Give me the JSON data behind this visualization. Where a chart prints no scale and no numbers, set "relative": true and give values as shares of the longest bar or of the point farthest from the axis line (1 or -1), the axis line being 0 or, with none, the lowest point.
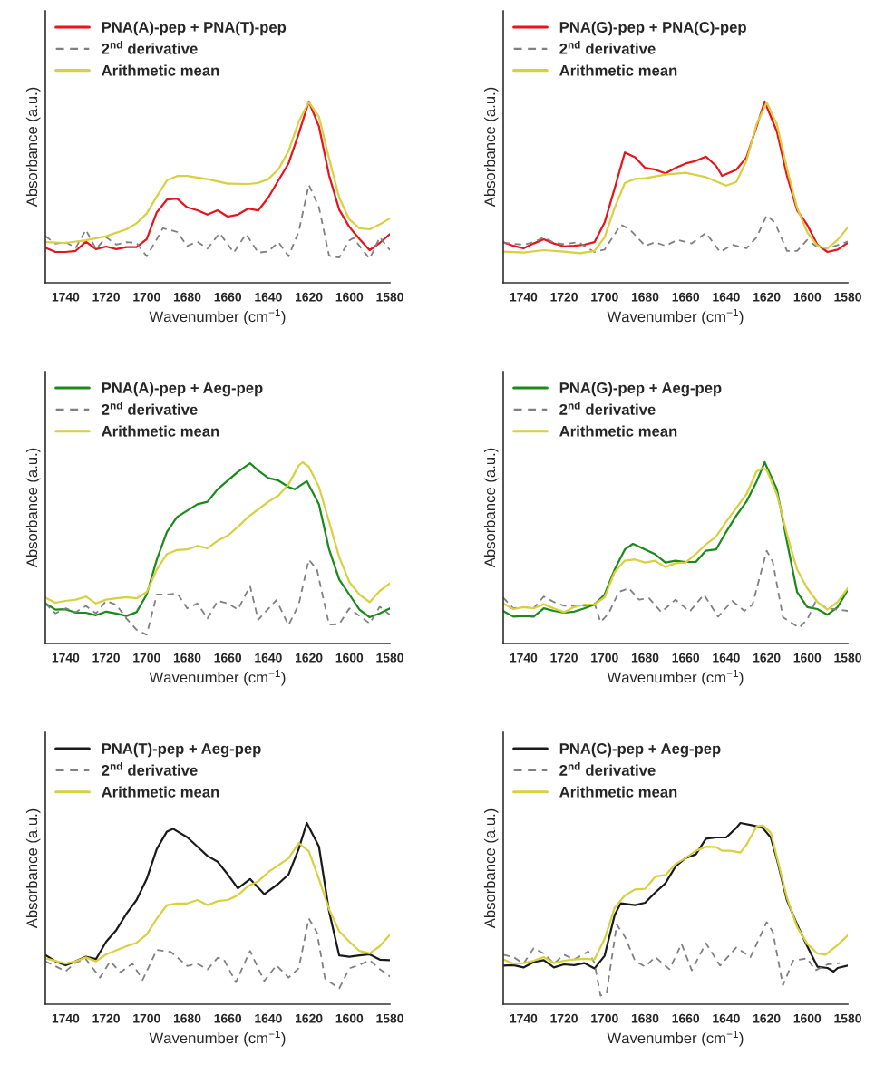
{
  "chart_data": [
    {
      "type": "line",
      "relative": true,
      "xlabel": "Wavenumber (cm$^{−1}$)",
      "ylabel": "Absorbance (a.u.)",
      "xlim": [
        1750,
        1580
      ],
      "xticks": [
        1740,
        1720,
        1700,
        1680,
        1660,
        1640,
        1620,
        1600,
        1580
      ],
      "legend": "top left",
      "series": [
        {
          "name": "PNA(A)-pep + PNA(T)-pep",
          "color": "#e8141c",
          "line_style": "solid",
          "x": [
            1750,
            1745,
            1740,
            1735,
            1730,
            1725,
            1720,
            1715,
            1710,
            1705,
            1700,
            1695,
            1690,
            1685,
            1680,
            1675,
            1670,
            1665,
            1660,
            1655,
            1650,
            1645,
            1640,
            1635,
            1630,
            1625,
            1620,
            1615,
            1610,
            1605,
            1600,
            1595,
            1590,
            1585,
            1580
          ],
          "values": [
            0.193,
            0.17,
            0.17,
            0.176,
            0.227,
            0.186,
            0.2,
            0.186,
            0.197,
            0.197,
            0.241,
            0.389,
            0.459,
            0.464,
            0.416,
            0.4,
            0.376,
            0.4,
            0.365,
            0.376,
            0.409,
            0.399,
            0.47,
            0.565,
            0.659,
            0.822,
            1.0,
            0.862,
            0.592,
            0.403,
            0.308,
            0.241,
            0.18,
            0.22,
            0.268
          ]
        },
        {
          "name": "2$^{nd}$ derivative",
          "color": "#808080",
          "line_style": "dashed",
          "x": [
            1750,
            1745,
            1740,
            1735,
            1730,
            1725,
            1720,
            1715,
            1710,
            1705,
            1700,
            1695,
            1692,
            1685,
            1680,
            1675,
            1670,
            1664,
            1657,
            1651,
            1645,
            1640,
            1635,
            1630,
            1625,
            1620,
            1615,
            1610,
            1605,
            1600,
            1598,
            1590,
            1585,
            1580
          ],
          "values": [
            0.257,
            0.216,
            0.224,
            0.193,
            0.292,
            0.186,
            0.251,
            0.211,
            0.224,
            0.22,
            0.146,
            0.241,
            0.301,
            0.281,
            0.203,
            0.227,
            0.189,
            0.274,
            0.166,
            0.27,
            0.166,
            0.173,
            0.224,
            0.146,
            0.281,
            0.541,
            0.416,
            0.149,
            0.139,
            0.234,
            0.247,
            0.132,
            0.251,
            0.18
          ]
        },
        {
          "name": "Arithmetic mean",
          "color": "#d8d040",
          "line_style": "solid",
          "x": [
            1750,
            1740,
            1730,
            1720,
            1710,
            1705,
            1700,
            1695,
            1690,
            1685,
            1680,
            1670,
            1660,
            1650,
            1645,
            1640,
            1635,
            1630,
            1625,
            1620,
            1615,
            1610,
            1605,
            1600,
            1595,
            1590,
            1585,
            1580
          ],
          "values": [
            0.224,
            0.22,
            0.234,
            0.257,
            0.295,
            0.328,
            0.382,
            0.477,
            0.565,
            0.589,
            0.589,
            0.572,
            0.547,
            0.545,
            0.551,
            0.572,
            0.626,
            0.727,
            0.889,
            0.997,
            0.916,
            0.686,
            0.47,
            0.349,
            0.301,
            0.295,
            0.322,
            0.355
          ]
        }
      ]
    },
    {
      "type": "line",
      "relative": true,
      "xlabel": "Wavenumber (cm$^{−1}$)",
      "ylabel": "Absorbance (a.u.)",
      "xlim": [
        1750,
        1580
      ],
      "xticks": [
        1740,
        1720,
        1700,
        1680,
        1660,
        1640,
        1620,
        1600,
        1580
      ],
      "legend": "top left",
      "series": [
        {
          "name": "PNA(G)-pep + PNA(C)-pep",
          "color": "#e8141c",
          "line_style": "solid",
          "x": [
            1750,
            1745,
            1740,
            1735,
            1730,
            1725,
            1720,
            1715,
            1710,
            1705,
            1700,
            1695,
            1690,
            1685,
            1680,
            1675,
            1670,
            1665,
            1660,
            1655,
            1650,
            1645,
            1642,
            1635,
            1630,
            1625,
            1621,
            1615,
            1610,
            1605,
            1600,
            1595,
            1590,
            1585,
            1580
          ],
          "values": [
            0.224,
            0.204,
            0.19,
            0.217,
            0.24,
            0.217,
            0.201,
            0.204,
            0.21,
            0.224,
            0.332,
            0.522,
            0.719,
            0.692,
            0.634,
            0.624,
            0.604,
            0.634,
            0.658,
            0.672,
            0.696,
            0.645,
            0.59,
            0.624,
            0.692,
            0.862,
            1.0,
            0.835,
            0.59,
            0.4,
            0.319,
            0.21,
            0.17,
            0.183,
            0.221
          ]
        },
        {
          "name": "2$^{nd}$ derivative",
          "color": "#808080",
          "line_style": "dashed",
          "x": [
            1750,
            1740,
            1735,
            1730,
            1725,
            1720,
            1713,
            1705,
            1700,
            1692,
            1688,
            1680,
            1675,
            1670,
            1664,
            1657,
            1650,
            1643,
            1637,
            1630,
            1625,
            1620,
            1616,
            1610,
            1605,
            1600,
            1595,
            1590,
            1580
          ],
          "values": [
            0.221,
            0.21,
            0.224,
            0.251,
            0.221,
            0.213,
            0.224,
            0.17,
            0.183,
            0.319,
            0.299,
            0.204,
            0.224,
            0.204,
            0.237,
            0.217,
            0.275,
            0.17,
            0.21,
            0.19,
            0.251,
            0.373,
            0.332,
            0.176,
            0.176,
            0.237,
            0.197,
            0.19,
            0.227
          ]
        },
        {
          "name": "Arithmetic mean",
          "color": "#d8d040",
          "line_style": "solid",
          "x": [
            1750,
            1740,
            1730,
            1720,
            1712,
            1705,
            1700,
            1695,
            1690,
            1685,
            1680,
            1670,
            1660,
            1650,
            1640,
            1635,
            1630,
            1625,
            1620,
            1615,
            1610,
            1605,
            1600,
            1595,
            1590,
            1585,
            1580
          ],
          "values": [
            0.172,
            0.167,
            0.18,
            0.172,
            0.163,
            0.176,
            0.251,
            0.414,
            0.55,
            0.573,
            0.577,
            0.597,
            0.607,
            0.583,
            0.536,
            0.556,
            0.672,
            0.875,
            0.995,
            0.875,
            0.631,
            0.414,
            0.278,
            0.204,
            0.19,
            0.237,
            0.305
          ]
        }
      ]
    },
    {
      "type": "line",
      "relative": true,
      "xlabel": "Wavenumber (cm$^{−1}$)",
      "ylabel": "Absorbance (a.u.)",
      "xlim": [
        1750,
        1580
      ],
      "xticks": [
        1740,
        1720,
        1700,
        1680,
        1660,
        1640,
        1620,
        1600,
        1580
      ],
      "legend": "top left",
      "series": [
        {
          "name": "PNA(A)-pep + Aeg-pep",
          "color": "#1a8a1a",
          "line_style": "solid",
          "x": [
            1750,
            1745,
            1740,
            1735,
            1730,
            1725,
            1720,
            1715,
            1710,
            1705,
            1700,
            1695,
            1690,
            1685,
            1680,
            1675,
            1670,
            1665,
            1660,
            1655,
            1649,
            1645,
            1640,
            1635,
            1630,
            1627,
            1621,
            1615,
            1610,
            1605,
            1600,
            1595,
            1590,
            1585,
            1580
          ],
          "values": [
            0.221,
            0.187,
            0.189,
            0.17,
            0.17,
            0.156,
            0.176,
            0.166,
            0.152,
            0.173,
            0.27,
            0.463,
            0.616,
            0.698,
            0.733,
            0.768,
            0.782,
            0.851,
            0.899,
            0.947,
            0.994,
            0.954,
            0.913,
            0.899,
            0.864,
            0.851,
            0.896,
            0.768,
            0.519,
            0.353,
            0.27,
            0.187,
            0.145,
            0.166,
            0.194
          ]
        },
        {
          "name": "2$^{nd}$ derivative",
          "color": "#808080",
          "line_style": "dashed",
          "x": [
            1750,
            1745,
            1740,
            1735,
            1730,
            1725,
            1720,
            1715,
            1710,
            1705,
            1700,
            1695,
            1690,
            1685,
            1680,
            1675,
            1670,
            1665,
            1660,
            1655,
            1649,
            1645,
            1636,
            1630,
            1625,
            1620,
            1616,
            1610,
            1605,
            1600,
            1595,
            1590,
            1585,
            1580
          ],
          "values": [
            0.221,
            0.166,
            0.194,
            0.173,
            0.207,
            0.166,
            0.235,
            0.214,
            0.138,
            0.076,
            0.048,
            0.27,
            0.27,
            0.277,
            0.194,
            0.221,
            0.138,
            0.235,
            0.221,
            0.187,
            0.318,
            0.131,
            0.239,
            0.101,
            0.214,
            0.463,
            0.408,
            0.104,
            0.107,
            0.194,
            0.152,
            0.111,
            0.203,
            0.159
          ]
        },
        {
          "name": "Arithmetic mean",
          "color": "#d8d040",
          "line_style": "solid",
          "x": [
            1750,
            1745,
            1740,
            1735,
            1730,
            1725,
            1720,
            1715,
            1710,
            1705,
            1700,
            1695,
            1690,
            1685,
            1680,
            1675,
            1670,
            1665,
            1660,
            1655,
            1650,
            1645,
            1640,
            1635,
            1630,
            1625,
            1623,
            1620,
            1615,
            1610,
            1605,
            1600,
            1595,
            1590,
            1585,
            1580
          ],
          "values": [
            0.253,
            0.225,
            0.235,
            0.242,
            0.259,
            0.221,
            0.242,
            0.249,
            0.256,
            0.249,
            0.284,
            0.408,
            0.494,
            0.516,
            0.519,
            0.539,
            0.526,
            0.567,
            0.595,
            0.643,
            0.698,
            0.74,
            0.782,
            0.816,
            0.878,
            0.982,
            1.0,
            0.975,
            0.864,
            0.671,
            0.477,
            0.339,
            0.27,
            0.228,
            0.29,
            0.332
          ]
        }
      ]
    },
    {
      "type": "line",
      "relative": true,
      "xlabel": "Wavenumber (cm$^{−1}$)",
      "ylabel": "Absorbance (a.u.)",
      "xlim": [
        1750,
        1580
      ],
      "xticks": [
        1740,
        1720,
        1700,
        1680,
        1660,
        1640,
        1620,
        1600,
        1580
      ],
      "legend": "top left",
      "series": [
        {
          "name": "PNA(G)-pep + Aeg-pep",
          "color": "#1a8a1a",
          "line_style": "solid",
          "x": [
            1750,
            1745,
            1740,
            1735,
            1730,
            1725,
            1720,
            1715,
            1710,
            1705,
            1700,
            1695,
            1690,
            1686,
            1680,
            1675,
            1670,
            1665,
            1660,
            1655,
            1650,
            1645,
            1640,
            1635,
            1630,
            1625,
            1621,
            1615,
            1610,
            1605,
            1600,
            1595,
            1590,
            1585,
            1580
          ],
          "values": [
            0.179,
            0.148,
            0.152,
            0.148,
            0.194,
            0.18,
            0.17,
            0.176,
            0.194,
            0.215,
            0.27,
            0.409,
            0.519,
            0.55,
            0.519,
            0.492,
            0.447,
            0.457,
            0.45,
            0.45,
            0.512,
            0.519,
            0.616,
            0.706,
            0.783,
            0.893,
            1.0,
            0.852,
            0.561,
            0.284,
            0.201,
            0.19,
            0.159,
            0.201,
            0.295
          ]
        },
        {
          "name": "2$^{nd}$ derivative",
          "color": "#808080",
          "line_style": "dashed",
          "x": [
            1750,
            1745,
            1740,
            1735,
            1730,
            1725,
            1720,
            1710,
            1705,
            1702,
            1698,
            1693,
            1688,
            1683,
            1678,
            1672,
            1665,
            1658,
            1651,
            1644,
            1637,
            1631,
            1627,
            1620,
            1617,
            1612,
            1604,
            1600,
            1596,
            1590,
            1580
          ],
          "values": [
            0.253,
            0.194,
            0.201,
            0.194,
            0.259,
            0.229,
            0.208,
            0.208,
            0.222,
            0.118,
            0.166,
            0.284,
            0.305,
            0.242,
            0.249,
            0.173,
            0.242,
            0.176,
            0.27,
            0.148,
            0.235,
            0.18,
            0.215,
            0.512,
            0.45,
            0.145,
            0.087,
            0.132,
            0.229,
            0.194,
            0.18
          ]
        },
        {
          "name": "Arithmetic mean",
          "color": "#d8d040",
          "line_style": "solid",
          "x": [
            1750,
            1745,
            1740,
            1735,
            1730,
            1725,
            1720,
            1715,
            1710,
            1705,
            1700,
            1695,
            1690,
            1685,
            1680,
            1675,
            1670,
            1665,
            1660,
            1655,
            1650,
            1645,
            1640,
            1635,
            1630,
            1625,
            1622,
            1620,
            1615,
            1610,
            1605,
            1600,
            1595,
            1590,
            1585,
            1580
          ],
          "values": [
            0.222,
            0.19,
            0.201,
            0.194,
            0.217,
            0.194,
            0.173,
            0.201,
            0.215,
            0.215,
            0.256,
            0.395,
            0.457,
            0.464,
            0.447,
            0.457,
            0.422,
            0.443,
            0.447,
            0.494,
            0.547,
            0.589,
            0.672,
            0.748,
            0.824,
            0.949,
            0.967,
            0.956,
            0.824,
            0.602,
            0.409,
            0.305,
            0.229,
            0.187,
            0.229,
            0.305
          ]
        }
      ]
    },
    {
      "type": "line",
      "relative": true,
      "xlabel": "Wavenumber (cm$^{−1}$)",
      "ylabel": "Absorbance (a.u.)",
      "xlim": [
        1750,
        1580
      ],
      "xticks": [
        1740,
        1720,
        1700,
        1680,
        1660,
        1640,
        1620,
        1600,
        1580
      ],
      "legend": "top left",
      "series": [
        {
          "name": "PNA(T)-pep + Aeg-pep",
          "color": "#1a1a1a",
          "line_style": "solid",
          "x": [
            1750,
            1745,
            1740,
            1735,
            1730,
            1725,
            1720,
            1715,
            1710,
            1705,
            1700,
            1695,
            1690,
            1687,
            1680,
            1675,
            1670,
            1665,
            1660,
            1655,
            1649,
            1642,
            1635,
            1630,
            1625,
            1621,
            1615,
            1610,
            1605,
            1600,
            1595,
            1590,
            1585,
            1580
          ],
          "values": [
            0.271,
            0.237,
            0.215,
            0.237,
            0.262,
            0.249,
            0.345,
            0.409,
            0.499,
            0.575,
            0.691,
            0.857,
            0.953,
            0.968,
            0.921,
            0.87,
            0.818,
            0.786,
            0.716,
            0.639,
            0.691,
            0.607,
            0.665,
            0.716,
            0.857,
            1.0,
            0.87,
            0.512,
            0.269,
            0.262,
            0.269,
            0.275,
            0.246,
            0.243
          ]
        },
        {
          "name": "2$^{nd}$ derivative",
          "color": "#808080",
          "line_style": "dashed",
          "x": [
            1750,
            1740,
            1735,
            1730,
            1723,
            1718,
            1713,
            1707,
            1702,
            1695,
            1688,
            1680,
            1675,
            1670,
            1665,
            1662,
            1656,
            1649,
            1642,
            1636,
            1630,
            1625,
            1620,
            1616,
            1612,
            1605,
            1600,
            1595,
            1590,
            1585,
            1580
          ],
          "values": [
            0.237,
            0.182,
            0.23,
            0.249,
            0.147,
            0.237,
            0.176,
            0.224,
            0.134,
            0.3,
            0.288,
            0.211,
            0.224,
            0.192,
            0.256,
            0.249,
            0.121,
            0.294,
            0.128,
            0.215,
            0.147,
            0.198,
            0.473,
            0.396,
            0.141,
            0.087,
            0.198,
            0.217,
            0.243,
            0.194,
            0.153
          ]
        },
        {
          "name": "Arithmetic mean",
          "color": "#d8d040",
          "line_style": "solid",
          "x": [
            1750,
            1740,
            1735,
            1730,
            1725,
            1720,
            1710,
            1705,
            1700,
            1695,
            1690,
            1685,
            1680,
            1675,
            1670,
            1665,
            1660,
            1655,
            1650,
            1645,
            1640,
            1635,
            1630,
            1625,
            1620,
            1615,
            1610,
            1605,
            1600,
            1595,
            1590,
            1585,
            1580
          ],
          "values": [
            0.253,
            0.224,
            0.237,
            0.258,
            0.237,
            0.275,
            0.32,
            0.339,
            0.384,
            0.473,
            0.547,
            0.556,
            0.556,
            0.575,
            0.547,
            0.569,
            0.575,
            0.601,
            0.652,
            0.678,
            0.729,
            0.767,
            0.806,
            0.889,
            0.844,
            0.691,
            0.524,
            0.403,
            0.345,
            0.294,
            0.281,
            0.32,
            0.384
          ]
        }
      ]
    },
    {
      "type": "line",
      "relative": true,
      "xlabel": "Wavenumber (cm$^{−1}$)",
      "ylabel": "Absorbance (a.u.)",
      "xlim": [
        1750,
        1580
      ],
      "xticks": [
        1740,
        1720,
        1700,
        1680,
        1660,
        1640,
        1620,
        1600,
        1580
      ],
      "legend": "top left",
      "series": [
        {
          "name": "PNA(C)-pep + Aeg-pep",
          "color": "#1a1a1a",
          "line_style": "solid",
          "x": [
            1750,
            1745,
            1740,
            1735,
            1730,
            1725,
            1720,
            1715,
            1710,
            1705,
            1700,
            1695,
            1692,
            1685,
            1680,
            1675,
            1670,
            1665,
            1660,
            1655,
            1650,
            1645,
            1640,
            1635,
            1633,
            1627,
            1622,
            1618,
            1615,
            1610,
            1605,
            1600,
            1595,
            1590,
            1587,
            1585,
            1580
          ],
          "values": [
            0.213,
            0.216,
            0.203,
            0.233,
            0.243,
            0.203,
            0.22,
            0.216,
            0.227,
            0.197,
            0.267,
            0.493,
            0.557,
            0.547,
            0.56,
            0.616,
            0.667,
            0.76,
            0.807,
            0.827,
            0.913,
            0.92,
            0.92,
            0.973,
            1.0,
            0.987,
            0.973,
            0.92,
            0.8,
            0.573,
            0.44,
            0.32,
            0.207,
            0.2,
            0.18,
            0.2,
            0.213
          ]
        },
        {
          "name": "2$^{nd}$ derivative",
          "color": "#808080",
          "line_style": "dashed",
          "x": [
            1750,
            1745,
            1740,
            1735,
            1730,
            1725,
            1720,
            1715,
            1708,
            1705,
            1702,
            1699,
            1694,
            1690,
            1685,
            1680,
            1675,
            1668,
            1662,
            1657,
            1650,
            1643,
            1635,
            1628,
            1620,
            1617,
            1612,
            1607,
            1600,
            1596,
            1590,
            1584
          ],
          "values": [
            0.273,
            0.26,
            0.224,
            0.309,
            0.28,
            0.224,
            0.273,
            0.247,
            0.291,
            0.227,
            0.047,
            0.06,
            0.44,
            0.373,
            0.24,
            0.207,
            0.26,
            0.193,
            0.333,
            0.187,
            0.336,
            0.213,
            0.313,
            0.26,
            0.453,
            0.4,
            0.104,
            0.24,
            0.253,
            0.187,
            0.22,
            0.227
          ]
        },
        {
          "name": "Arithmetic mean",
          "color": "#d8d040",
          "line_style": "solid",
          "x": [
            1750,
            1745,
            1740,
            1735,
            1730,
            1725,
            1720,
            1715,
            1710,
            1705,
            1700,
            1695,
            1690,
            1685,
            1680,
            1675,
            1670,
            1665,
            1660,
            1655,
            1650,
            1645,
            1642,
            1638,
            1633,
            1630,
            1625,
            1622,
            1618,
            1615,
            1610,
            1605,
            1600,
            1595,
            1591,
            1585,
            1580
          ],
          "values": [
            0.247,
            0.224,
            0.227,
            0.24,
            0.26,
            0.227,
            0.24,
            0.247,
            0.251,
            0.247,
            0.36,
            0.533,
            0.6,
            0.633,
            0.637,
            0.704,
            0.713,
            0.773,
            0.807,
            0.847,
            0.869,
            0.867,
            0.847,
            0.847,
            0.837,
            0.88,
            0.98,
            0.987,
            0.947,
            0.813,
            0.587,
            0.427,
            0.333,
            0.28,
            0.273,
            0.327,
            0.38
          ]
        }
      ]
    }
  ]
}
